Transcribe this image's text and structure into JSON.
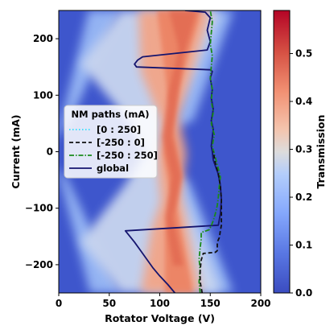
{
  "chart_data": {
    "type": "heatmap",
    "xlabel": "Rotator Voltage (V)",
    "ylabel": "Current (mA)",
    "colorbar_label": "Transmission",
    "colormap": "coolwarm",
    "xlim": [
      0,
      200
    ],
    "ylim": [
      -250,
      250
    ],
    "x_ticks": [
      0,
      50,
      100,
      150,
      200
    ],
    "y_ticks": [
      -200,
      -100,
      0,
      100,
      200
    ],
    "colorbar_range": [
      0.0,
      0.59
    ],
    "colorbar_ticks": [
      0.0,
      0.1,
      0.2,
      0.3,
      0.4,
      0.5
    ],
    "legend": {
      "title": "NM paths (mA)",
      "placement": "center-left",
      "entries": [
        "[0 : 250]",
        "[-250 : 0]",
        "[-250 : 250]",
        "global"
      ]
    },
    "series": [
      {
        "name": "global",
        "color": "#14146e",
        "style": "solid",
        "points": [
          [
            115,
            -250
          ],
          [
            108,
            -235
          ],
          [
            100,
            -220
          ],
          [
            93,
            -205
          ],
          [
            87,
            -190
          ],
          [
            81,
            -175
          ],
          [
            75,
            -160
          ],
          [
            66,
            -140
          ],
          [
            158,
            -130
          ],
          [
            160,
            -110
          ],
          [
            161,
            -85
          ],
          [
            160,
            -60
          ],
          [
            158,
            -40
          ],
          [
            155,
            -25
          ],
          [
            153,
            -15
          ],
          [
            152,
            0
          ],
          [
            151,
            10
          ],
          [
            152,
            25
          ],
          [
            153,
            40
          ],
          [
            151,
            55
          ],
          [
            153,
            75
          ],
          [
            151,
            95
          ],
          [
            152,
            110
          ],
          [
            150,
            130
          ],
          [
            152,
            142
          ],
          [
            150,
            145
          ],
          [
            77,
            150
          ],
          [
            75,
            155
          ],
          [
            78,
            162
          ],
          [
            83,
            168
          ],
          [
            147,
            180
          ],
          [
            150,
            195
          ],
          [
            147,
            215
          ],
          [
            150,
            237
          ],
          [
            145,
            247
          ],
          [
            125,
            250
          ]
        ]
      },
      {
        "name": "[-250 : 250]",
        "color": "#1a8a1a",
        "style": "dashdot",
        "points": [
          [
            140,
            -250
          ],
          [
            139,
            -230
          ],
          [
            140,
            -210
          ],
          [
            139,
            -190
          ],
          [
            140,
            -170
          ],
          [
            141,
            -155
          ],
          [
            141,
            -143
          ],
          [
            146,
            -140
          ],
          [
            149,
            -138
          ],
          [
            151,
            -131
          ],
          [
            153,
            -122
          ],
          [
            155,
            -110
          ],
          [
            157,
            -95
          ],
          [
            158,
            -80
          ],
          [
            159,
            -60
          ],
          [
            160,
            -45
          ],
          [
            158,
            -30
          ],
          [
            155,
            -10
          ],
          [
            152,
            10
          ],
          [
            154,
            30
          ],
          [
            151,
            50
          ],
          [
            153,
            70
          ],
          [
            151,
            90
          ],
          [
            152,
            110
          ],
          [
            150,
            130
          ],
          [
            151,
            150
          ],
          [
            152,
            170
          ],
          [
            150,
            190
          ],
          [
            151,
            210
          ],
          [
            152,
            230
          ],
          [
            150,
            250
          ]
        ]
      },
      {
        "name": "[-250 : 0]",
        "color": "#111111",
        "style": "dashed",
        "points": [
          [
            142,
            -250
          ],
          [
            140,
            -230
          ],
          [
            140,
            -210
          ],
          [
            141,
            -192
          ],
          [
            143,
            -180
          ],
          [
            155,
            -178
          ],
          [
            157,
            -175
          ],
          [
            157,
            -160
          ],
          [
            159,
            -152
          ],
          [
            160,
            -140
          ],
          [
            161,
            -130
          ],
          [
            161,
            -110
          ],
          [
            161,
            -85
          ],
          [
            160,
            -60
          ],
          [
            158,
            -40
          ],
          [
            155,
            -20
          ],
          [
            153,
            0
          ]
        ]
      },
      {
        "name": "[0 : 250]",
        "color": "#30e0ff",
        "style": "dotted",
        "points": []
      }
    ]
  },
  "colors": {
    "background_low": "#3b4cc0",
    "white_mid": "#dddddd",
    "red_high": "#b40426"
  }
}
